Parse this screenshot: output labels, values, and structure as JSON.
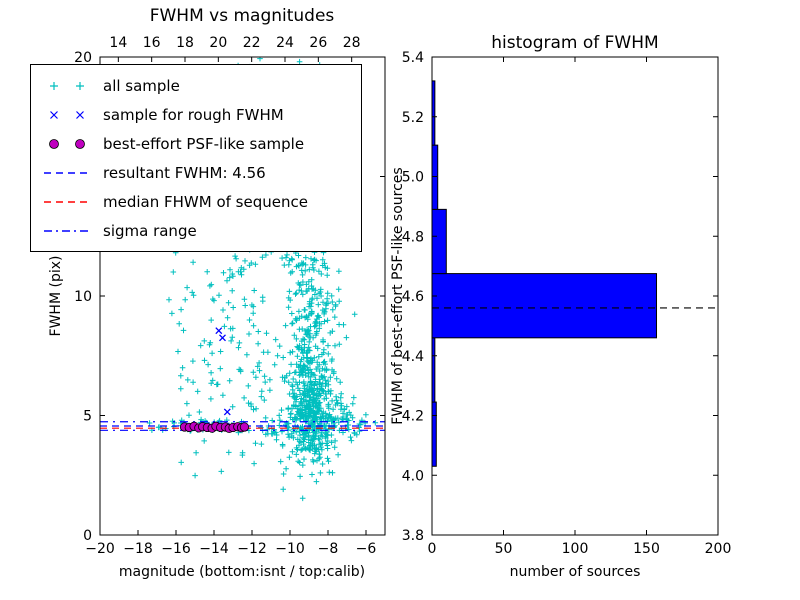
{
  "chart_data": [
    {
      "type": "scatter",
      "title": "FWHM vs magnitudes",
      "xlabel": "magnitude (bottom:isnt / top:calib)",
      "ylabel": "FWHM (pix)",
      "xlim": [
        -20,
        -5
      ],
      "ylim": [
        0,
        20
      ],
      "xticks": [
        -20,
        -18,
        -16,
        -14,
        -12,
        -10,
        -8,
        -6
      ],
      "yticks": [
        0,
        5,
        10,
        15,
        20
      ],
      "top_axis": {
        "lim": [
          12.9,
          30
        ],
        "ticks": [
          14,
          16,
          18,
          20,
          22,
          24,
          26,
          28
        ]
      },
      "series": [
        {
          "name": "all sample",
          "marker": "plus",
          "color": "#00bfbf",
          "seed": 7,
          "clusters": [
            {
              "n": 420,
              "cx": -8.9,
              "sx": 0.55,
              "cy": 5.3,
              "sy": 1.1
            },
            {
              "n": 220,
              "cx": -8.8,
              "sx": 0.75,
              "cy": 8.5,
              "sy": 2.0
            },
            {
              "n": 150,
              "cx": -9.2,
              "sx": 0.8,
              "cy": 14.0,
              "sy": 3.2
            },
            {
              "n": 80,
              "cx": -7.4,
              "sx": 0.7,
              "cy": 4.7,
              "sy": 0.45
            },
            {
              "n": 70,
              "cx": -12.1,
              "sx": 0.45,
              "cy": 15.5,
              "sy": 2.8
            },
            {
              "n": 45,
              "cx": -12.2,
              "sx": 0.5,
              "cy": 9.5,
              "sy": 2.2
            },
            {
              "n": 70,
              "cx": -14.2,
              "sx": 1.1,
              "cy": 4.55,
              "sy": 0.12
            },
            {
              "n": 40,
              "cx": -14.3,
              "sx": 1.0,
              "cy": 6.5,
              "sy": 1.5
            },
            {
              "n": 30,
              "cx": -14.6,
              "sx": 0.9,
              "cy": 11.0,
              "sy": 2.0
            },
            {
              "n": 12,
              "cx": -13.0,
              "sx": 1.6,
              "cy": 3.4,
              "sy": 0.5
            },
            {
              "n": 25,
              "cx": -10.8,
              "sx": 0.7,
              "cy": 4.6,
              "sy": 0.3
            },
            {
              "n": 18,
              "cx": -11.5,
              "sx": 0.8,
              "cy": 6.5,
              "sy": 1.2
            },
            {
              "n": 6,
              "cx": -11.0,
              "sx": 2.2,
              "cy": 2.6,
              "sy": 0.3
            }
          ]
        },
        {
          "name": "sample for rough FWHM",
          "marker": "x",
          "color": "#0000ff",
          "points": [
            [
              -13.75,
              8.55
            ],
            [
              -13.55,
              8.25
            ],
            [
              -13.3,
              5.15
            ],
            [
              -13.9,
              4.62
            ],
            [
              -13.1,
              4.55
            ],
            [
              -12.55,
              4.5
            ],
            [
              -14.4,
              4.58
            ]
          ]
        },
        {
          "name": "best-effort PSF-like sample",
          "marker": "circle",
          "color": "#bf00bf",
          "edge_color": "#000000",
          "points": [
            [
              -15.55,
              4.52
            ],
            [
              -15.3,
              4.5
            ],
            [
              -15.05,
              4.55
            ],
            [
              -14.8,
              4.48
            ],
            [
              -14.6,
              4.53
            ],
            [
              -14.35,
              4.5
            ],
            [
              -14.1,
              4.47
            ],
            [
              -13.9,
              4.55
            ],
            [
              -13.65,
              4.5
            ],
            [
              -13.4,
              4.52
            ],
            [
              -13.2,
              4.46
            ],
            [
              -13.0,
              4.5
            ],
            [
              -12.75,
              4.53
            ],
            [
              -12.55,
              4.49
            ],
            [
              -12.4,
              4.52
            ]
          ]
        }
      ],
      "lines": [
        {
          "label": "resultant FWHM: 4.56",
          "y": 4.56,
          "color": "#0000ff",
          "style": "dashed"
        },
        {
          "label": "median FHWM of sequence",
          "y": 4.47,
          "color": "#ff0000",
          "style": "dashed"
        },
        {
          "label": "sigma range",
          "y": 4.38,
          "color": "#0000ff",
          "style": "dashdot"
        },
        {
          "label": "sigma range",
          "y": 4.74,
          "color": "#0000ff",
          "style": "dashdot"
        }
      ],
      "legend": [
        {
          "label": "all sample",
          "swatch": "plus",
          "color": "#00bfbf"
        },
        {
          "label": "sample for rough FWHM",
          "swatch": "x",
          "color": "#0000ff"
        },
        {
          "label": "best-effort PSF-like sample",
          "swatch": "circle",
          "color": "#bf00bf"
        },
        {
          "label": "resultant FWHM: 4.56",
          "swatch": "dashed-line",
          "color": "#0000ff"
        },
        {
          "label": "median FHWM of sequence",
          "swatch": "dashed-line",
          "color": "#ff0000"
        },
        {
          "label": "sigma range",
          "swatch": "dashdot-line",
          "color": "#0000ff"
        }
      ]
    },
    {
      "type": "bar",
      "orientation": "horizontal",
      "title": "histogram of FWHM",
      "xlabel": "number of sources",
      "ylabel": "FWHM of best-effort PSF-like sources",
      "xlim": [
        0,
        200
      ],
      "ylim": [
        3.8,
        5.4
      ],
      "xticks": [
        0,
        50,
        100,
        150,
        200
      ],
      "yticks": [
        3.8,
        4.0,
        4.2,
        4.4,
        4.6,
        4.8,
        5.0,
        5.2,
        5.4
      ],
      "bar_color": "#0000ff",
      "bar_edge_color": "#000000",
      "bin_edges": [
        4.03,
        4.245,
        4.46,
        4.675,
        4.89,
        5.105,
        5.32
      ],
      "counts": [
        3,
        2,
        157,
        10,
        4,
        2
      ],
      "median_line": {
        "y": 4.56,
        "color": "#000000",
        "style": "dashed"
      }
    }
  ]
}
